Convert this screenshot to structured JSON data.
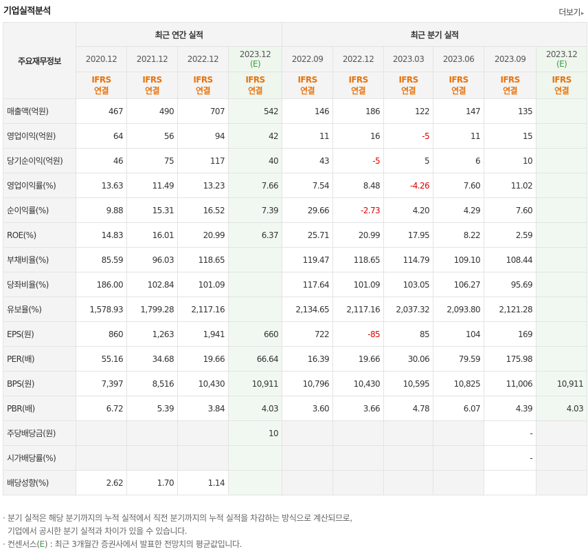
{
  "header": {
    "title": "기업실적분석",
    "more_label": "더보기",
    "more_arrow": "▸"
  },
  "table": {
    "row_header": "주요재무정보",
    "group_annual": "최근 연간 실적",
    "group_quarter": "최근 분기 실적",
    "periods": [
      {
        "label": "2020.12",
        "est": ""
      },
      {
        "label": "2021.12",
        "est": ""
      },
      {
        "label": "2022.12",
        "est": ""
      },
      {
        "label": "2023.12",
        "est": "(E)"
      },
      {
        "label": "2022.09",
        "est": ""
      },
      {
        "label": "2022.12",
        "est": ""
      },
      {
        "label": "2023.03",
        "est": ""
      },
      {
        "label": "2023.06",
        "est": ""
      },
      {
        "label": "2023.09",
        "est": ""
      },
      {
        "label": "2023.12",
        "est": "(E)"
      }
    ],
    "ifrs_line1": "IFRS",
    "ifrs_line2": "연결",
    "rows": [
      {
        "label": "매출액(억원)",
        "values": [
          "467",
          "490",
          "707",
          "542",
          "146",
          "186",
          "122",
          "147",
          "135",
          ""
        ]
      },
      {
        "label": "영업이익(억원)",
        "values": [
          "64",
          "56",
          "94",
          "42",
          "11",
          "16",
          "-5",
          "11",
          "15",
          ""
        ]
      },
      {
        "label": "당기순이익(억원)",
        "values": [
          "46",
          "75",
          "117",
          "40",
          "43",
          "-5",
          "5",
          "6",
          "10",
          ""
        ]
      },
      {
        "label": "영업이익률(%)",
        "values": [
          "13.63",
          "11.49",
          "13.23",
          "7.66",
          "7.54",
          "8.48",
          "-4.26",
          "7.60",
          "11.02",
          ""
        ]
      },
      {
        "label": "순이익률(%)",
        "values": [
          "9.88",
          "15.31",
          "16.52",
          "7.39",
          "29.66",
          "-2.73",
          "4.20",
          "4.29",
          "7.60",
          ""
        ]
      },
      {
        "label": "ROE(%)",
        "values": [
          "14.83",
          "16.01",
          "20.99",
          "6.37",
          "25.71",
          "20.99",
          "17.95",
          "8.22",
          "2.59",
          ""
        ]
      },
      {
        "label": "부채비율(%)",
        "values": [
          "85.59",
          "96.03",
          "118.65",
          "",
          "119.47",
          "118.65",
          "114.79",
          "109.10",
          "108.44",
          ""
        ]
      },
      {
        "label": "당좌비율(%)",
        "values": [
          "186.00",
          "102.84",
          "101.09",
          "",
          "117.64",
          "101.09",
          "103.05",
          "106.27",
          "95.69",
          ""
        ]
      },
      {
        "label": "유보율(%)",
        "values": [
          "1,578.93",
          "1,799.28",
          "2,117.16",
          "",
          "2,134.65",
          "2,117.16",
          "2,037.32",
          "2,093.80",
          "2,121.28",
          ""
        ]
      },
      {
        "label": "EPS(원)",
        "values": [
          "860",
          "1,263",
          "1,941",
          "660",
          "722",
          "-85",
          "85",
          "104",
          "169",
          ""
        ]
      },
      {
        "label": "PER(배)",
        "values": [
          "55.16",
          "34.68",
          "19.66",
          "66.64",
          "16.39",
          "19.66",
          "30.06",
          "79.59",
          "175.98",
          ""
        ]
      },
      {
        "label": "BPS(원)",
        "values": [
          "7,397",
          "8,516",
          "10,430",
          "10,911",
          "10,796",
          "10,430",
          "10,595",
          "10,825",
          "11,006",
          "10,911"
        ]
      },
      {
        "label": "PBR(배)",
        "values": [
          "6.72",
          "5.39",
          "3.84",
          "4.03",
          "3.60",
          "3.66",
          "4.78",
          "6.07",
          "4.39",
          "4.03"
        ]
      },
      {
        "label": "주당배당금(원)",
        "values": [
          "",
          "",
          "",
          "10",
          "",
          "",
          "",
          "",
          "-",
          ""
        ]
      },
      {
        "label": "시가배당률(%)",
        "values": [
          "",
          "",
          "",
          "",
          "",
          "",
          "",
          "",
          "-",
          ""
        ]
      },
      {
        "label": "배당성향(%)",
        "values": [
          "2.62",
          "1.70",
          "1.14",
          "",
          "",
          "",
          "",
          "",
          "",
          ""
        ]
      }
    ]
  },
  "notes": {
    "line1": "· 분기 실적은 해당 분기까지의 누적 실적에서 직전 분기까지의 누적 실적을 차감하는 방식으로 계산되므로,",
    "line2": "  기업에서 공시한 분기 실적과 차이가 있을 수 있습니다.",
    "line3_prefix": "· 컨센서스(",
    "line3_mark": "E",
    "line3_suffix": ") : 최근 3개월간 증권사에서 발표한 전망치의 평균값입니다."
  }
}
